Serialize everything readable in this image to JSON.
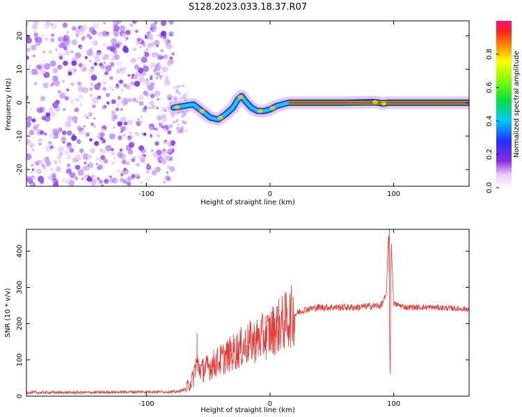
{
  "title": "S128.2023.033.18.37.R07",
  "chart_data": [
    {
      "type": "heatmap",
      "xlabel": "Height of straight line (km)",
      "ylabel": "Frequency (Hz)",
      "xlim": [
        -197,
        161
      ],
      "ylim": [
        -25,
        24.5
      ],
      "xticks": [
        -100,
        0,
        100
      ],
      "xtick_labels": [
        "-100",
        "0",
        "100"
      ],
      "yticks": [
        -20,
        -10,
        0,
        10,
        20
      ],
      "ytick_labels": [
        "-20",
        "-10",
        "0",
        "10",
        "20"
      ],
      "colorbar": {
        "label": "Normalized spectral amplitude",
        "range": [
          0,
          1
        ],
        "ticks": [
          0.0,
          0.2,
          0.4,
          0.6,
          0.8
        ],
        "tick_labels": [
          "0.0",
          "0.2",
          "0.4",
          "0.6",
          "0.8"
        ]
      },
      "regions": {
        "noise_x_range": [
          -197,
          -78
        ],
        "track_x_range": [
          -80,
          161
        ]
      },
      "track": [
        {
          "x": -78,
          "f": -1.5
        },
        {
          "x": -70,
          "f": -1.0
        },
        {
          "x": -62,
          "f": -0.5
        },
        {
          "x": -55,
          "f": -2.5
        },
        {
          "x": -48,
          "f": -4.5
        },
        {
          "x": -42,
          "f": -5.0
        },
        {
          "x": -36,
          "f": -3.5
        },
        {
          "x": -30,
          "f": -1.5
        },
        {
          "x": -26,
          "f": 1.0
        },
        {
          "x": -23,
          "f": 2.0
        },
        {
          "x": -20,
          "f": 0.5
        },
        {
          "x": -15,
          "f": -1.5
        },
        {
          "x": -10,
          "f": -2.5
        },
        {
          "x": -5,
          "f": -2.5
        },
        {
          "x": 0,
          "f": -2.0
        },
        {
          "x": 5,
          "f": -1.0
        },
        {
          "x": 10,
          "f": -0.5
        },
        {
          "x": 15,
          "f": 0.0
        },
        {
          "x": 20,
          "f": 0.0
        },
        {
          "x": 60,
          "f": 0.0
        },
        {
          "x": 85,
          "f": 0.2
        },
        {
          "x": 92,
          "f": -0.3
        },
        {
          "x": 95,
          "f": 0.0
        },
        {
          "x": 161,
          "f": 0.0
        }
      ]
    },
    {
      "type": "line",
      "xlabel": "Height of straight line (km)",
      "ylabel": "SNR (10 * v/v)",
      "xlim": [
        -197,
        161
      ],
      "ylim": [
        0,
        460
      ],
      "xticks": [
        -100,
        0,
        100
      ],
      "xtick_labels": [
        "-100",
        "0",
        "100"
      ],
      "yticks": [
        0,
        100,
        200,
        300,
        400
      ],
      "ytick_labels": [
        "0",
        "100",
        "200",
        "300",
        "400"
      ],
      "series_color": "#e53935",
      "series": [
        {
          "x": [
            -197,
            -150,
            -100,
            -75,
            -68,
            -62,
            -60,
            -55,
            -50,
            -45,
            -40,
            -35,
            -30,
            -25,
            -20,
            -15,
            -10,
            -5,
            0,
            5,
            10,
            15,
            20,
            25,
            30,
            40,
            50,
            60,
            70,
            80,
            90,
            94,
            96,
            97,
            98,
            100,
            110,
            130,
            161
          ],
          "y": [
            10,
            10,
            12,
            12,
            20,
            50,
            90,
            70,
            80,
            90,
            100,
            110,
            120,
            130,
            140,
            150,
            155,
            165,
            175,
            190,
            200,
            215,
            225,
            235,
            240,
            245,
            245,
            245,
            245,
            248,
            250,
            280,
            460,
            60,
            420,
            255,
            245,
            245,
            240
          ]
        }
      ],
      "spikes": [
        {
          "x": -59,
          "y": 175
        },
        {
          "x": -54,
          "y": 105
        },
        {
          "x": 95,
          "y": 380
        },
        {
          "x": 96.5,
          "y": 460
        },
        {
          "x": 97.3,
          "y": 60
        },
        {
          "x": 98.2,
          "y": 420
        }
      ]
    }
  ]
}
